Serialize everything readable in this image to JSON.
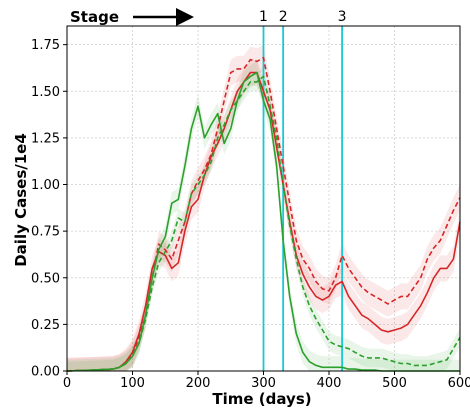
{
  "chart_data": {
    "type": "line",
    "xlabel": "Time (days)",
    "ylabel": "Daily Cases/1e4",
    "xlim": [
      0,
      600
    ],
    "ylim": [
      0,
      1.85
    ],
    "x_ticks": [
      "0",
      "100",
      "200",
      "300",
      "400",
      "500",
      "600"
    ],
    "y_ticks": [
      "0.00",
      "0.25",
      "0.50",
      "0.75",
      "1.00",
      "1.25",
      "1.50",
      "1.75"
    ],
    "grid": true,
    "stage_label": "Stage",
    "stage_lines": [
      {
        "label": "1",
        "x": 300
      },
      {
        "label": "2",
        "x": 330
      },
      {
        "label": "3",
        "x": 420
      }
    ],
    "colors": {
      "red": "#d62728",
      "green": "#2ca02c",
      "stage_line": "#17c9d6"
    },
    "x": [
      0,
      40,
      70,
      80,
      90,
      100,
      110,
      120,
      130,
      140,
      150,
      160,
      170,
      180,
      190,
      200,
      210,
      220,
      230,
      240,
      250,
      260,
      270,
      280,
      290,
      300,
      310,
      320,
      330,
      340,
      350,
      360,
      370,
      380,
      390,
      400,
      410,
      420,
      430,
      440,
      450,
      460,
      470,
      480,
      490,
      500,
      510,
      520,
      530,
      540,
      550,
      560,
      570,
      580,
      590,
      600
    ],
    "series": [
      {
        "color": "#d62728",
        "style": "solid",
        "values": [
          0,
          0.005,
          0.01,
          0.02,
          0.05,
          0.1,
          0.2,
          0.35,
          0.55,
          0.64,
          0.62,
          0.55,
          0.58,
          0.75,
          0.88,
          0.92,
          1.05,
          1.15,
          1.22,
          1.3,
          1.4,
          1.5,
          1.55,
          1.6,
          1.6,
          1.5,
          1.4,
          1.2,
          1.0,
          0.8,
          0.62,
          0.52,
          0.45,
          0.4,
          0.38,
          0.4,
          0.46,
          0.48,
          0.4,
          0.35,
          0.3,
          0.28,
          0.25,
          0.22,
          0.21,
          0.22,
          0.23,
          0.25,
          0.3,
          0.35,
          0.42,
          0.5,
          0.55,
          0.55,
          0.6,
          0.8
        ],
        "band": 0.07
      },
      {
        "color": "#d62728",
        "style": "dashed",
        "values": [
          0,
          0.005,
          0.01,
          0.02,
          0.04,
          0.09,
          0.18,
          0.3,
          0.5,
          0.68,
          0.65,
          0.6,
          0.7,
          0.8,
          0.95,
          1.02,
          1.08,
          1.16,
          1.3,
          1.45,
          1.6,
          1.62,
          1.62,
          1.67,
          1.66,
          1.68,
          1.5,
          1.3,
          1.1,
          0.9,
          0.7,
          0.6,
          0.55,
          0.48,
          0.44,
          0.43,
          0.5,
          0.62,
          0.55,
          0.5,
          0.45,
          0.42,
          0.4,
          0.38,
          0.36,
          0.38,
          0.4,
          0.4,
          0.45,
          0.5,
          0.6,
          0.66,
          0.7,
          0.78,
          0.86,
          0.93
        ],
        "band": 0.07
      },
      {
        "color": "#2ca02c",
        "style": "solid",
        "values": [
          0,
          0.005,
          0.01,
          0.02,
          0.04,
          0.08,
          0.15,
          0.3,
          0.5,
          0.65,
          0.72,
          0.9,
          0.92,
          1.1,
          1.3,
          1.42,
          1.25,
          1.32,
          1.38,
          1.22,
          1.3,
          1.45,
          1.55,
          1.58,
          1.6,
          1.45,
          1.35,
          1.1,
          0.7,
          0.4,
          0.2,
          0.1,
          0.05,
          0.03,
          0.02,
          0.02,
          0.02,
          0.02,
          0.01,
          0.01,
          0.005,
          0.005,
          0.005,
          0,
          0,
          0,
          0,
          0,
          0,
          0,
          0,
          0,
          0,
          0,
          0,
          0
        ],
        "band": 0.06
      },
      {
        "color": "#2ca02c",
        "style": "dashed",
        "values": [
          0,
          0.005,
          0.01,
          0.02,
          0.04,
          0.08,
          0.15,
          0.28,
          0.45,
          0.58,
          0.64,
          0.7,
          0.82,
          0.8,
          0.95,
          1.0,
          1.05,
          1.12,
          1.25,
          1.32,
          1.4,
          1.45,
          1.5,
          1.55,
          1.55,
          1.58,
          1.42,
          1.25,
          1.0,
          0.78,
          0.6,
          0.45,
          0.35,
          0.28,
          0.22,
          0.16,
          0.14,
          0.13,
          0.12,
          0.1,
          0.08,
          0.07,
          0.07,
          0.07,
          0.06,
          0.05,
          0.04,
          0.04,
          0.03,
          0.03,
          0.03,
          0.04,
          0.05,
          0.06,
          0.12,
          0.18
        ],
        "band": 0.05
      }
    ]
  }
}
